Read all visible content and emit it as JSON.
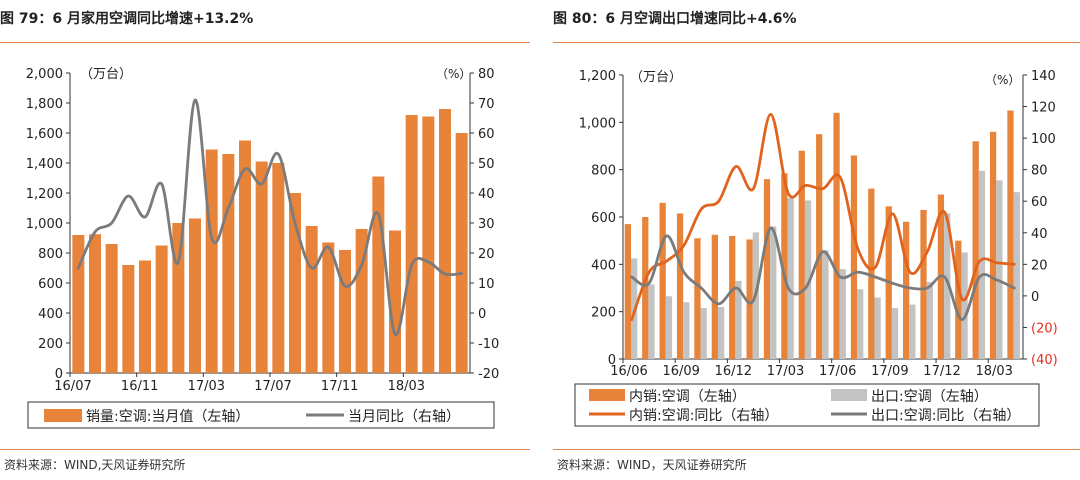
{
  "colors": {
    "orange_bar": "#E8833A",
    "orange_line": "#E0641E",
    "gray_bar": "#C3C3C3",
    "gray_line": "#7B7B7B",
    "red_label": "#E0301E",
    "rule": "#E0864A"
  },
  "charts": {
    "left": {
      "title": "图 79：6 月家用空调同比增速+13.2%",
      "source": "资料来源：WIND,天风证券研究所"
    },
    "right": {
      "title": "图 80：6 月空调出口增速同比+4.6%",
      "source": "资料来源：WIND，天风证券研究所"
    }
  },
  "chart_data": [
    {
      "type": "bar",
      "title": "图 79：6 月家用空调同比增速+13.2%",
      "left_unit": "（万台）",
      "right_unit": "（%）",
      "left_ticks": [
        "2,000",
        "1,800",
        "1,600",
        "1,400",
        "1,200",
        "1,000",
        "800",
        "600",
        "400",
        "200",
        "0"
      ],
      "right_ticks": [
        "80",
        "70",
        "60",
        "50",
        "40",
        "30",
        "20",
        "10",
        "0",
        "-10",
        "-20"
      ],
      "ylim_left": [
        0,
        2000
      ],
      "ylim_right": [
        -20,
        80
      ],
      "x_ticks": [
        "16/07",
        "16/11",
        "17/03",
        "17/07",
        "17/11",
        "18/03"
      ],
      "series": [
        {
          "name": "销量:空调:当月值（左轴）",
          "kind": "bar",
          "axis": "left",
          "values": [
            920,
            925,
            860,
            720,
            750,
            850,
            1000,
            1030,
            1490,
            1460,
            1550,
            1410,
            1400,
            1200,
            980,
            870,
            820,
            960,
            1310,
            950,
            1720,
            1710,
            1760,
            1600
          ]
        },
        {
          "name": "当月同比（右轴）",
          "kind": "line",
          "axis": "right",
          "values": [
            15,
            27,
            30,
            39,
            32,
            43,
            17,
            71,
            25,
            35,
            48,
            43,
            53,
            30,
            15,
            22,
            9,
            16,
            33,
            -7,
            16,
            17,
            13,
            13.2
          ]
        }
      ]
    },
    {
      "type": "bar",
      "title": "图 80：6 月空调出口增速同比+4.6%",
      "left_unit": "（万台）",
      "right_unit": "（%）",
      "left_ticks": [
        "1,200",
        "1,000",
        "800",
        "600",
        "400",
        "200",
        "0"
      ],
      "right_ticks": [
        "140",
        "120",
        "100",
        "80",
        "60",
        "40",
        "20",
        "0",
        "(20)",
        "(40)"
      ],
      "ylim_left": [
        0,
        1200
      ],
      "ylim_right": [
        -40,
        140
      ],
      "x_ticks": [
        "16/06",
        "16/09",
        "16/12",
        "17/03",
        "17/06",
        "17/09",
        "17/12",
        "18/03"
      ],
      "series": [
        {
          "name": "内销:空调（左轴）",
          "kind": "bar",
          "axis": "left",
          "values": [
            570,
            600,
            660,
            615,
            510,
            525,
            520,
            505,
            760,
            785,
            880,
            950,
            1040,
            860,
            720,
            645,
            580,
            630,
            695,
            500,
            920,
            960,
            1050
          ]
        },
        {
          "name": "出口:空调（左轴）",
          "kind": "bar",
          "axis": "left",
          "values": [
            425,
            315,
            265,
            240,
            215,
            220,
            330,
            535,
            560,
            680,
            670,
            460,
            380,
            295,
            260,
            215,
            230,
            325,
            615,
            450,
            795,
            755,
            705
          ]
        },
        {
          "name": "内销:空调:同比（右轴）",
          "kind": "line",
          "axis": "right",
          "values": [
            -15,
            15,
            22,
            32,
            55,
            60,
            82,
            68,
            115,
            65,
            70,
            68,
            75,
            30,
            18,
            52,
            15,
            28,
            53,
            -2,
            22,
            21,
            20
          ]
        },
        {
          "name": "出口:空调:同比（右轴）",
          "kind": "line",
          "axis": "right",
          "values": [
            12,
            8,
            38,
            15,
            5,
            -5,
            5,
            -3,
            43,
            5,
            5,
            28,
            12,
            15,
            12,
            8,
            5,
            5,
            12,
            -15,
            12,
            10,
            5
          ]
        }
      ]
    }
  ]
}
